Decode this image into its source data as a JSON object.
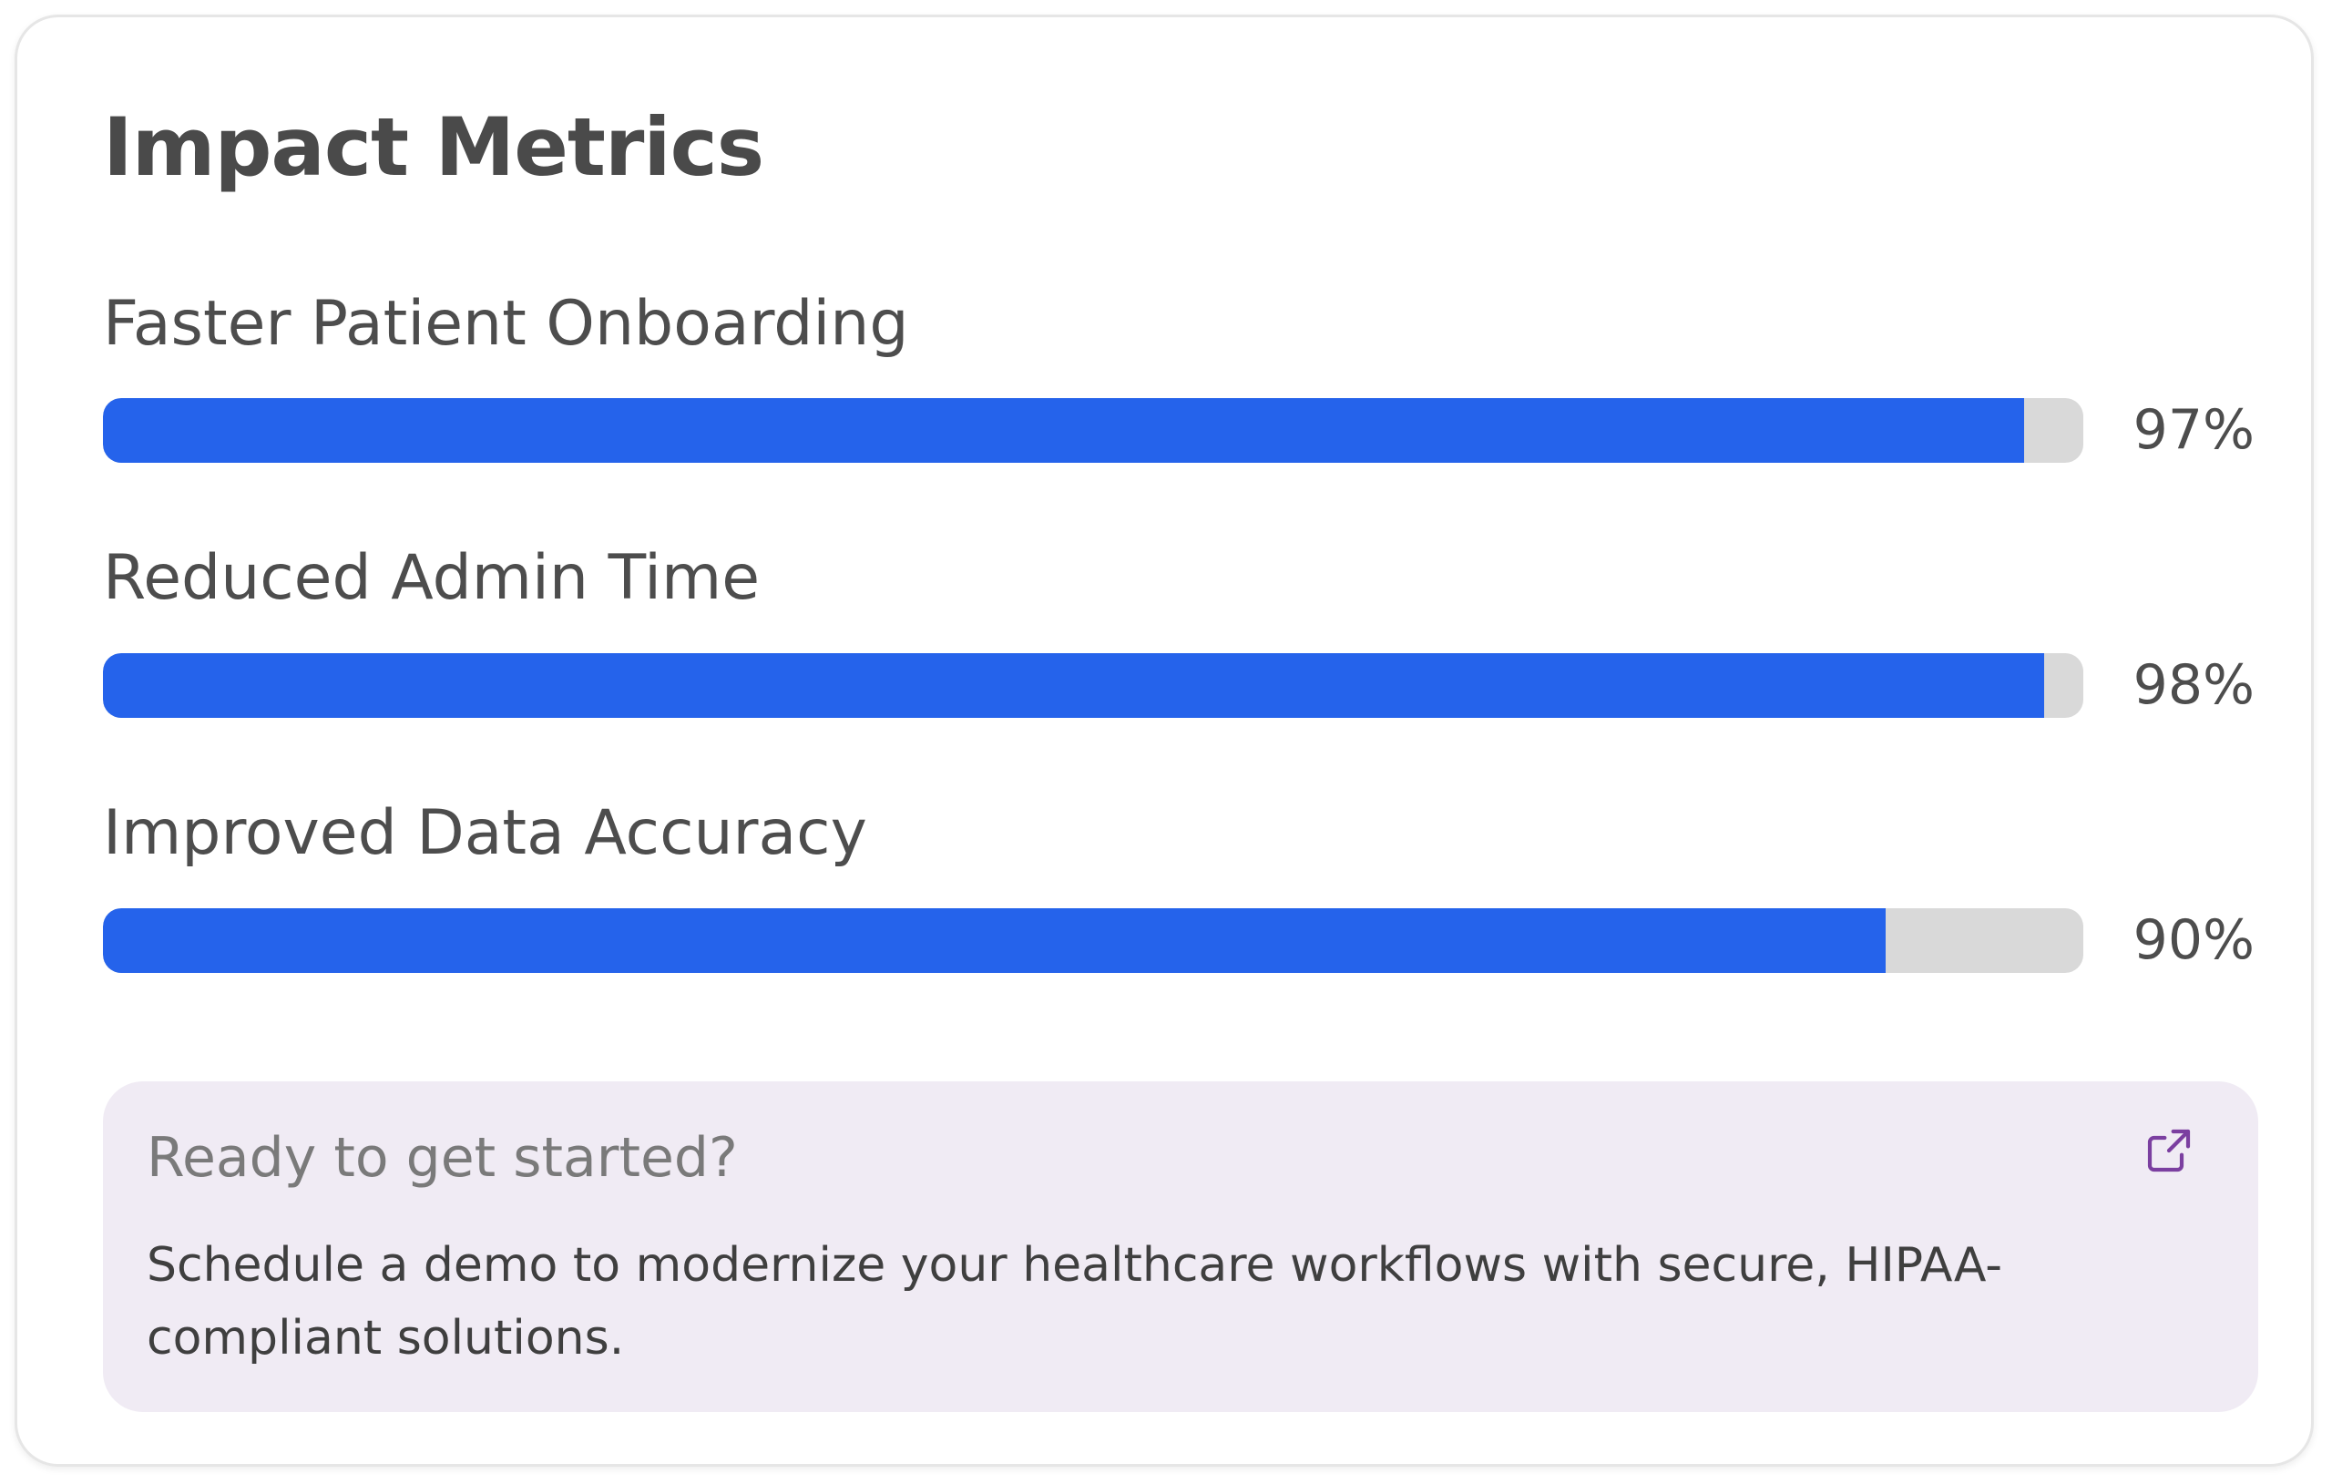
{
  "card": {
    "title": "Impact Metrics"
  },
  "metrics": [
    {
      "label": "Faster Patient Onboarding",
      "value": 97,
      "value_text": "97%"
    },
    {
      "label": "Reduced Admin Time",
      "value": 98,
      "value_text": "98%"
    },
    {
      "label": "Improved Data Accuracy",
      "value": 90,
      "value_text": "90%"
    }
  ],
  "cta": {
    "heading": "Ready to get started?",
    "body": "Schedule a demo to modernize your healthcare workflows with secure, HIPAA-compliant solutions.",
    "icon": "external-link-icon"
  },
  "colors": {
    "bar_fill": "#2563eb",
    "bar_track": "#d9d9d9",
    "cta_background": "#f0ebf4",
    "cta_icon": "#7b3fa0"
  }
}
